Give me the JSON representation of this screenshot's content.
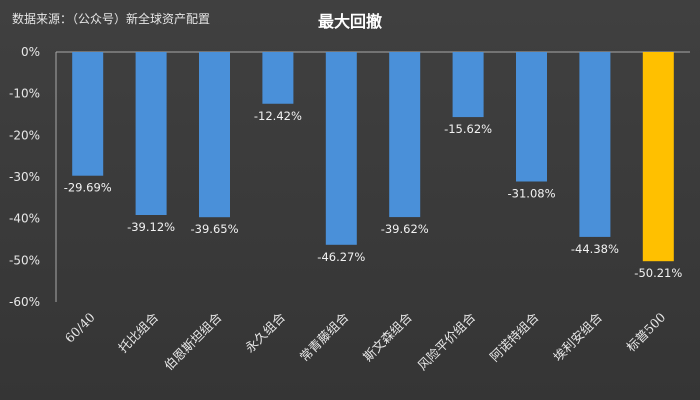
{
  "source_note": "数据来源：（公众号）新全球资产配置",
  "chart_data": {
    "type": "bar",
    "title": "最大回撤",
    "categories": [
      "60/40",
      "托比组合",
      "伯恩斯坦组合",
      "永久组合",
      "常青藤组合",
      "斯文森组合",
      "风险平价组合",
      "阿诺特组合",
      "埃利安组合",
      "标普500"
    ],
    "values": [
      -29.69,
      -39.12,
      -39.65,
      -12.42,
      -46.27,
      -39.62,
      -15.62,
      -31.08,
      -44.38,
      -50.21
    ],
    "data_labels": [
      "-29.69%",
      "-39.12%",
      "-39.65%",
      "-12.42%",
      "-46.27%",
      "-39.62%",
      "-15.62%",
      "-31.08%",
      "-44.38%",
      "-50.21%"
    ],
    "y_ticks": [
      0,
      -10,
      -20,
      -30,
      -40,
      -50,
      -60
    ],
    "y_tick_labels": [
      "0%",
      "-10%",
      "-20%",
      "-30%",
      "-40%",
      "-50%",
      "-60%"
    ],
    "ylim": [
      -60,
      0
    ],
    "grid": false,
    "colors": {
      "default": "#4a90d9",
      "highlight": "#ffc000"
    },
    "highlight_index": 9
  }
}
